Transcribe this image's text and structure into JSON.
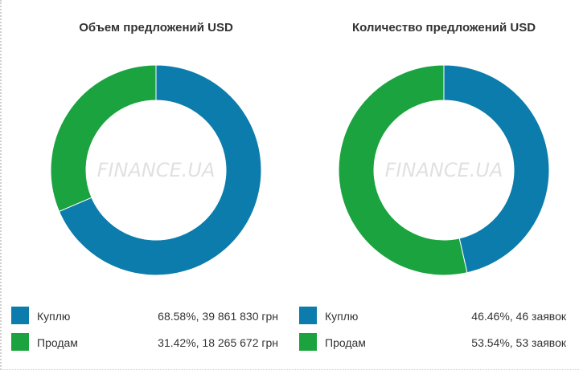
{
  "chart_data": [
    {
      "type": "pie",
      "title": "Объем предложений USD",
      "watermark": "FINANCE.UA",
      "legend": "bottom",
      "slices": [
        {
          "name": "Куплю",
          "value": 68.58,
          "detail": "68.58%, 39 861 830 грн",
          "color": "#0b7cab"
        },
        {
          "name": "Продам",
          "value": 31.42,
          "detail": "31.42%, 18 265 672 грн",
          "color": "#1aa33e"
        }
      ]
    },
    {
      "type": "pie",
      "title": "Количество предложений USD",
      "watermark": "FINANCE.UA",
      "legend": "bottom",
      "slices": [
        {
          "name": "Куплю",
          "value": 46.46,
          "detail": "46.46%, 46 заявок",
          "color": "#0b7cab"
        },
        {
          "name": "Продам",
          "value": 53.54,
          "detail": "53.54%, 53 заявок",
          "color": "#1aa33e"
        }
      ]
    }
  ]
}
